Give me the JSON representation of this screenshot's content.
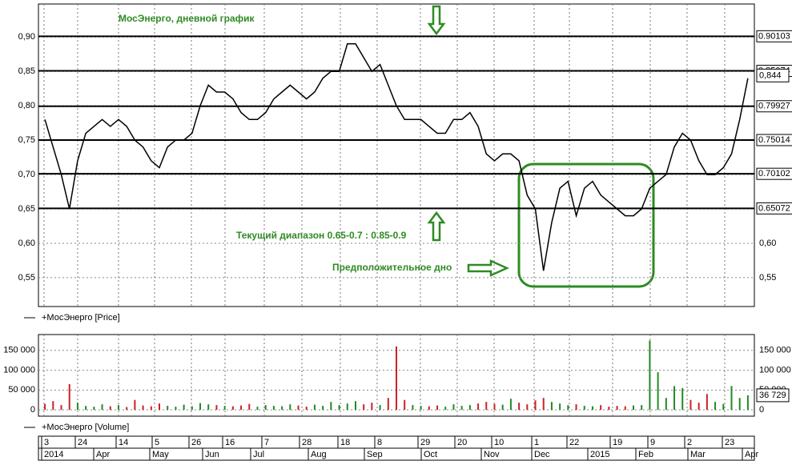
{
  "chart_data": [
    {
      "type": "line",
      "title": "МосЭнерго, дневной график",
      "annotations": [
        "Текущий диапазон 0.65-0.7 : 0.85-0.9",
        "Предположительное дно"
      ],
      "series": [
        {
          "name": "+МосЭнерго [Price]",
          "color": "#000000",
          "values": [
            0.78,
            0.74,
            0.7,
            0.65,
            0.72,
            0.76,
            0.77,
            0.78,
            0.77,
            0.78,
            0.77,
            0.75,
            0.74,
            0.72,
            0.71,
            0.74,
            0.75,
            0.75,
            0.76,
            0.8,
            0.83,
            0.82,
            0.82,
            0.81,
            0.79,
            0.78,
            0.78,
            0.79,
            0.81,
            0.82,
            0.83,
            0.82,
            0.81,
            0.82,
            0.84,
            0.85,
            0.85,
            0.89,
            0.89,
            0.87,
            0.85,
            0.86,
            0.83,
            0.8,
            0.78,
            0.78,
            0.78,
            0.77,
            0.76,
            0.76,
            0.78,
            0.78,
            0.79,
            0.77,
            0.73,
            0.72,
            0.73,
            0.73,
            0.72,
            0.67,
            0.65,
            0.56,
            0.63,
            0.68,
            0.69,
            0.64,
            0.68,
            0.69,
            0.67,
            0.66,
            0.65,
            0.64,
            0.64,
            0.65,
            0.68,
            0.69,
            0.7,
            0.74,
            0.76,
            0.75,
            0.72,
            0.7,
            0.7,
            0.71,
            0.73,
            0.78,
            0.84
          ]
        }
      ],
      "levels": [
        0.90103,
        0.85074,
        0.79927,
        0.75014,
        0.70102,
        0.65072
      ],
      "last_value": {
        "value": 0.844,
        "label": "0,844"
      },
      "ylim": [
        0.508,
        0.948
      ],
      "yticks": [
        {
          "value": 0.9,
          "label": "0,90"
        },
        {
          "value": 0.85,
          "label": "0,85"
        },
        {
          "value": 0.8,
          "label": "0,80"
        },
        {
          "value": 0.75,
          "label": "0,75"
        },
        {
          "value": 0.7,
          "label": "0,70"
        },
        {
          "value": 0.65,
          "label": "0,65"
        },
        {
          "value": 0.6,
          "label": "0,60"
        },
        {
          "value": 0.55,
          "label": "0,55"
        }
      ],
      "grid": true
    },
    {
      "type": "bar",
      "series": [
        {
          "name": "+МосЭнерго [Volume]",
          "color": "#cc2222",
          "up_color": "#228b22",
          "values": [
            15000,
            22000,
            12000,
            65000,
            18000,
            10000,
            8000,
            14000,
            9000,
            12000,
            7000,
            25000,
            11000,
            9000,
            16000,
            10000,
            8000,
            13000,
            9000,
            17000,
            14000,
            12000,
            10000,
            9000,
            11000,
            15000,
            8000,
            12000,
            10000,
            9000,
            14000,
            11000,
            8000,
            13000,
            10000,
            20000,
            12000,
            16000,
            22000,
            14000,
            18000,
            12000,
            30000,
            160000,
            25000,
            12000,
            10000,
            9000,
            11000,
            8000,
            14000,
            10000,
            12000,
            16000,
            20000,
            15000,
            13000,
            28000,
            18000,
            14000,
            24000,
            30000,
            20000,
            16000,
            12000,
            14000,
            10000,
            9000,
            12000,
            8000,
            10000,
            9000,
            11000,
            12000,
            175000,
            95000,
            30000,
            60000,
            55000,
            25000,
            18000,
            40000,
            20000,
            15000,
            60000,
            30000,
            36729
          ]
        }
      ],
      "last_value": {
        "value": 36729,
        "label": "36 729"
      },
      "ylim": [
        -16000,
        190000
      ],
      "yticks": [
        0,
        {
          "value": 50000,
          "label": "50 000"
        },
        {
          "value": 100000,
          "label": "100 000"
        },
        {
          "value": 150000,
          "label": "150 000"
        }
      ],
      "grid": true
    }
  ],
  "date_axis": {
    "days": [
      "3",
      "24",
      "14",
      "5",
      "26",
      "16",
      "7",
      "28",
      "18",
      "8",
      "29",
      "20",
      "10",
      "1",
      "22",
      "19",
      "9",
      "2",
      "23"
    ],
    "periods": [
      "2014",
      "Apr",
      "May",
      "Jun",
      "Jul",
      "Aug",
      "Sep",
      "Oct",
      "Nov",
      "Dec",
      "2015",
      "Feb",
      "Mar",
      "Apr"
    ]
  }
}
